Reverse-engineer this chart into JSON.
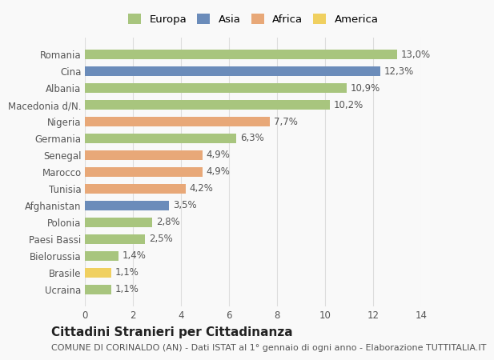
{
  "categories": [
    "Ucraina",
    "Brasile",
    "Bielorussia",
    "Paesi Bassi",
    "Polonia",
    "Afghanistan",
    "Tunisia",
    "Marocco",
    "Senegal",
    "Germania",
    "Nigeria",
    "Macedonia d/N.",
    "Albania",
    "Cina",
    "Romania"
  ],
  "values": [
    1.1,
    1.1,
    1.4,
    2.5,
    2.8,
    3.5,
    4.2,
    4.9,
    4.9,
    6.3,
    7.7,
    10.2,
    10.9,
    12.3,
    13.0
  ],
  "labels": [
    "1,1%",
    "1,1%",
    "1,4%",
    "2,5%",
    "2,8%",
    "3,5%",
    "4,2%",
    "4,9%",
    "4,9%",
    "6,3%",
    "7,7%",
    "10,2%",
    "10,9%",
    "12,3%",
    "13,0%"
  ],
  "continent": [
    "Europa",
    "America",
    "Europa",
    "Europa",
    "Europa",
    "Asia",
    "Africa",
    "Africa",
    "Africa",
    "Europa",
    "Africa",
    "Europa",
    "Europa",
    "Asia",
    "Europa"
  ],
  "colors": {
    "Europa": "#a8c57e",
    "Asia": "#6b8cba",
    "Africa": "#e8a878",
    "America": "#f0d060"
  },
  "legend_colors": {
    "Europa": "#a8c57e",
    "Asia": "#6b8cba",
    "Africa": "#e8a878",
    "America": "#f0d060"
  },
  "xlim": [
    0,
    14
  ],
  "xticks": [
    0,
    2,
    4,
    6,
    8,
    10,
    12,
    14
  ],
  "bar_height": 0.55,
  "background_color": "#f9f9f9",
  "grid_color": "#dddddd",
  "title": "Cittadini Stranieri per Cittadinanza",
  "subtitle": "COMUNE DI CORINALDO (AN) - Dati ISTAT al 1° gennaio di ogni anno - Elaborazione TUTTITALIA.IT",
  "label_fontsize": 8.5,
  "tick_fontsize": 8.5,
  "title_fontsize": 11,
  "subtitle_fontsize": 8
}
